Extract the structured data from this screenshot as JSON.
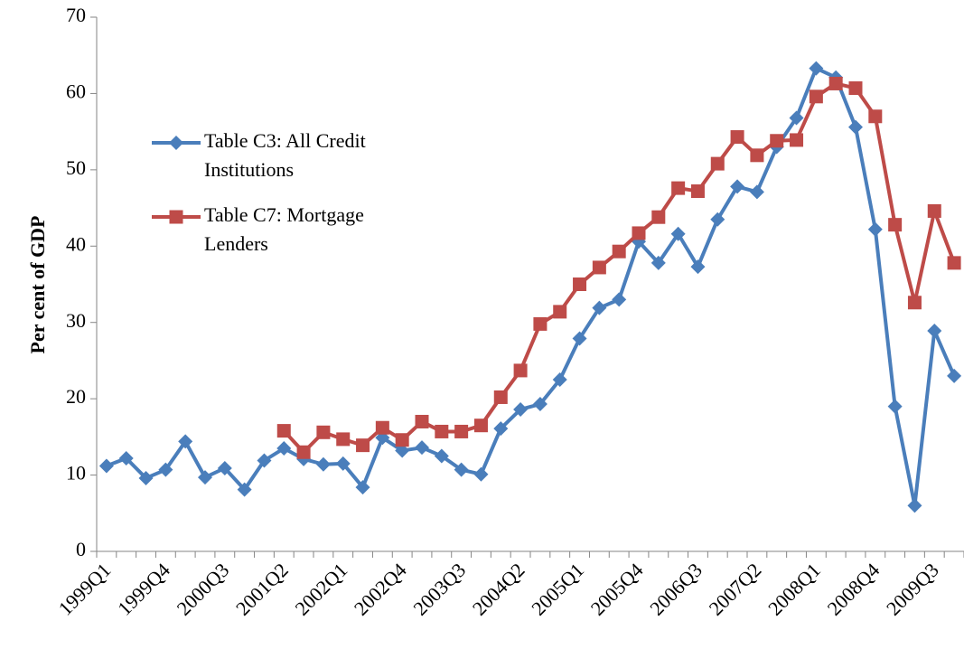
{
  "chart_data": {
    "type": "line",
    "y_label": "Per cent of GDP",
    "categories": [
      "1999Q1",
      null,
      null,
      "1999Q4",
      null,
      null,
      "2000Q3",
      null,
      null,
      "2001Q2",
      null,
      null,
      "2002Q1",
      null,
      null,
      "2002Q4",
      null,
      null,
      "2003Q3",
      null,
      null,
      "2004Q2",
      null,
      null,
      "2005Q1",
      null,
      null,
      "2005Q4",
      null,
      null,
      "2006Q3",
      null,
      null,
      "2007Q2",
      null,
      null,
      "2008Q1",
      null,
      null,
      "2008Q4",
      null,
      null,
      "2009Q3",
      null
    ],
    "series": [
      {
        "name": "Table C3: All Credit Institutions",
        "color": "#4a7ebb",
        "marker": "diamond",
        "values": [
          11.2,
          12.2,
          9.6,
          10.7,
          14.4,
          9.7,
          10.9,
          8.1,
          11.9,
          13.5,
          12.1,
          11.4,
          11.5,
          8.4,
          14.9,
          13.2,
          13.6,
          12.5,
          10.7,
          10.1,
          16.1,
          18.6,
          19.3,
          22.5,
          27.9,
          31.9,
          33.0,
          40.6,
          37.8,
          41.6,
          37.3,
          43.5,
          47.8,
          47.1,
          53.0,
          56.8,
          63.3,
          62.1,
          55.6,
          42.2,
          19.0,
          6.0,
          28.9,
          23.0
        ]
      },
      {
        "name": "Table C7: Mortgage Lenders",
        "color": "#be4b48",
        "marker": "square",
        "values": [
          null,
          null,
          null,
          null,
          null,
          null,
          null,
          null,
          null,
          15.8,
          13.0,
          15.6,
          14.7,
          13.9,
          16.2,
          14.6,
          17.0,
          15.7,
          15.7,
          16.5,
          20.2,
          23.7,
          29.8,
          31.4,
          35.0,
          37.2,
          39.3,
          41.7,
          43.8,
          47.6,
          47.2,
          50.8,
          54.3,
          51.9,
          53.8,
          53.9,
          59.6,
          61.3,
          60.7,
          57.0,
          42.8,
          32.6,
          44.6,
          37.8
        ]
      }
    ],
    "ylim": [
      0,
      70
    ],
    "yticks": [
      0,
      10,
      20,
      30,
      40,
      50,
      60,
      70
    ],
    "legend": "upper left",
    "grid": false
  }
}
